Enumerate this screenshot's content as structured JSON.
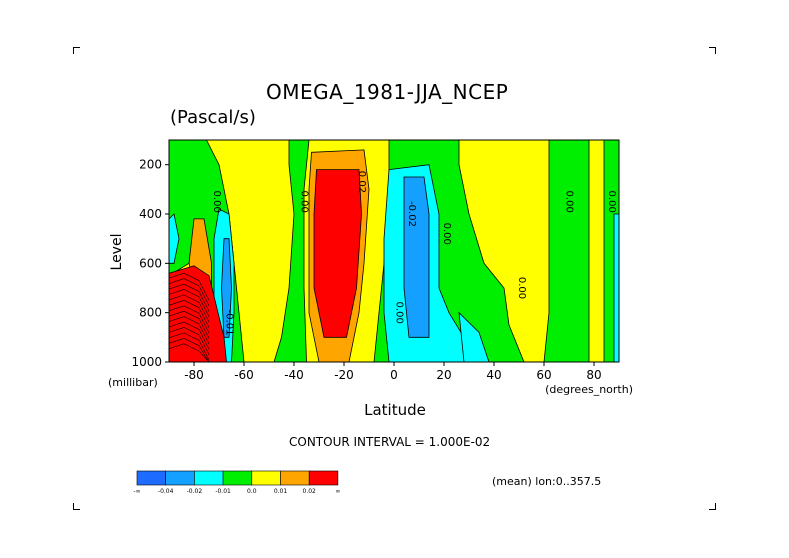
{
  "chart_data": {
    "type": "heatmap",
    "title": "OMEGA_1981-JJA_NCEP",
    "subtitle": "(Pascal/s)",
    "xlabel": "Latitude",
    "ylabel": "Level",
    "x_unit": "(degrees_north)",
    "y_unit": "(millibar)",
    "xlim": [
      -90,
      90
    ],
    "ylim": [
      1000,
      100
    ],
    "x_ticks": [
      "-80",
      "-60",
      "-40",
      "-20",
      "0",
      "20",
      "40",
      "60",
      "80"
    ],
    "x_tick_values": [
      -80,
      -60,
      -40,
      -20,
      0,
      20,
      40,
      60,
      80
    ],
    "y_ticks": [
      "200",
      "400",
      "600",
      "800",
      "1000"
    ],
    "y_tick_values": [
      200,
      400,
      600,
      800,
      1000
    ],
    "contour_interval_text": "CONTOUR INTERVAL = 1.000E-02",
    "mean_text": "(mean) lon:0..357.5",
    "contour_labels": [
      {
        "text": "0.00",
        "x": -72,
        "y": 350
      },
      {
        "text": "0.00",
        "x": -37,
        "y": 350
      },
      {
        "text": "0.02",
        "x": -14,
        "y": 270
      },
      {
        "text": "-0.02",
        "x": 6,
        "y": 400
      },
      {
        "text": "0.00",
        "x": 20,
        "y": 480
      },
      {
        "text": "0.00",
        "x": 1,
        "y": 800
      },
      {
        "text": "-0.01",
        "x": -67,
        "y": 840
      },
      {
        "text": "0.00",
        "x": 50,
        "y": 700
      },
      {
        "text": "0.00",
        "x": 69,
        "y": 350
      },
      {
        "text": "0.00",
        "x": 86,
        "y": 350
      }
    ],
    "colorbar": {
      "colors": [
        "#1e6cff",
        "#14a0ff",
        "#00ffff",
        "#00ee00",
        "#ffff00",
        "#ffa500",
        "#ff0000"
      ],
      "labels": [
        "-∞",
        "-0.04",
        "-0.02",
        "-0.01",
        "0.0",
        "0.01",
        "0.02",
        "∞"
      ]
    },
    "regions": [
      {
        "color": "#00ee00",
        "points": [
          [
            -90,
            100
          ],
          [
            90,
            100
          ],
          [
            90,
            1000
          ],
          [
            -90,
            1000
          ]
        ]
      },
      {
        "color": "#ffff00",
        "points": [
          [
            -75,
            100
          ],
          [
            -42,
            100
          ],
          [
            -42,
            200
          ],
          [
            -40,
            400
          ],
          [
            -42,
            700
          ],
          [
            -45,
            900
          ],
          [
            -48,
            1000
          ],
          [
            -60,
            1000
          ],
          [
            -62,
            800
          ],
          [
            -64,
            600
          ],
          [
            -66,
            400
          ],
          [
            -70,
            200
          ]
        ]
      },
      {
        "color": "#ffff00",
        "points": [
          [
            -34,
            100
          ],
          [
            -2,
            100
          ],
          [
            -2,
            300
          ],
          [
            -4,
            600
          ],
          [
            -6,
            800
          ],
          [
            -8,
            1000
          ],
          [
            -35,
            1000
          ],
          [
            -36,
            700
          ],
          [
            -36,
            300
          ]
        ]
      },
      {
        "color": "#ffff00",
        "points": [
          [
            26,
            100
          ],
          [
            62,
            100
          ],
          [
            62,
            400
          ],
          [
            62,
            800
          ],
          [
            60,
            1000
          ],
          [
            52,
            1000
          ],
          [
            46,
            850
          ],
          [
            44,
            700
          ],
          [
            36,
            600
          ],
          [
            30,
            400
          ],
          [
            26,
            200
          ]
        ]
      },
      {
        "color": "#ffff00",
        "points": [
          [
            78,
            100
          ],
          [
            84,
            100
          ],
          [
            84,
            1000
          ],
          [
            78,
            1000
          ]
        ]
      },
      {
        "color": "#ffff00",
        "points": [
          [
            -90,
            650
          ],
          [
            -82,
            600
          ],
          [
            -75,
            700
          ],
          [
            -72,
            1000
          ],
          [
            -90,
            1000
          ]
        ]
      },
      {
        "color": "#00ffff",
        "points": [
          [
            -70,
            380
          ],
          [
            -66,
            400
          ],
          [
            -64,
            600
          ],
          [
            -64,
            800
          ],
          [
            -65,
            1000
          ],
          [
            -70,
            1000
          ],
          [
            -72,
            800
          ],
          [
            -72,
            500
          ]
        ]
      },
      {
        "color": "#00ffff",
        "points": [
          [
            -2,
            220
          ],
          [
            14,
            200
          ],
          [
            18,
            400
          ],
          [
            18,
            700
          ],
          [
            22,
            800
          ],
          [
            28,
            900
          ],
          [
            30,
            1000
          ],
          [
            -2,
            1000
          ],
          [
            -4,
            800
          ],
          [
            -4,
            500
          ]
        ]
      },
      {
        "color": "#00ffff",
        "points": [
          [
            26,
            800
          ],
          [
            34,
            880
          ],
          [
            38,
            1000
          ],
          [
            28,
            1000
          ]
        ]
      },
      {
        "color": "#00ffff",
        "points": [
          [
            -88,
            400
          ],
          [
            -86,
            500
          ],
          [
            -88,
            600
          ],
          [
            -90,
            600
          ],
          [
            -90,
            420
          ]
        ]
      },
      {
        "color": "#00ffff",
        "points": [
          [
            88,
            400
          ],
          [
            90,
            400
          ],
          [
            90,
            1000
          ],
          [
            88,
            1000
          ]
        ]
      },
      {
        "color": "#14a0ff",
        "points": [
          [
            4,
            250
          ],
          [
            12,
            250
          ],
          [
            14,
            400
          ],
          [
            14,
            700
          ],
          [
            14,
            900
          ],
          [
            6,
            900
          ],
          [
            4,
            700
          ],
          [
            4,
            400
          ]
        ]
      },
      {
        "color": "#14a0ff",
        "points": [
          [
            -68,
            500
          ],
          [
            -66,
            500
          ],
          [
            -65,
            700
          ],
          [
            -66,
            900
          ],
          [
            -68,
            900
          ],
          [
            -69,
            700
          ]
        ]
      },
      {
        "color": "#ffa500",
        "points": [
          [
            -80,
            420
          ],
          [
            -76,
            420
          ],
          [
            -73,
            600
          ],
          [
            -73,
            700
          ],
          [
            -80,
            700
          ],
          [
            -82,
            600
          ]
        ]
      },
      {
        "color": "#ffa500",
        "points": [
          [
            -33,
            150
          ],
          [
            -12,
            140
          ],
          [
            -10,
            300
          ],
          [
            -12,
            600
          ],
          [
            -14,
            800
          ],
          [
            -18,
            1000
          ],
          [
            -30,
            1000
          ],
          [
            -34,
            800
          ],
          [
            -34,
            500
          ],
          [
            -34,
            300
          ]
        ]
      },
      {
        "color": "#ff0000",
        "points": [
          [
            -31,
            220
          ],
          [
            -14,
            220
          ],
          [
            -13,
            400
          ],
          [
            -15,
            700
          ],
          [
            -19,
            900
          ],
          [
            -28,
            900
          ],
          [
            -32,
            700
          ],
          [
            -32,
            400
          ]
        ]
      },
      {
        "color": "#ff0000",
        "points": [
          [
            -90,
            640
          ],
          [
            -80,
            610
          ],
          [
            -74,
            650
          ],
          [
            -68,
            900
          ],
          [
            -67,
            1000
          ],
          [
            -90,
            1000
          ]
        ]
      }
    ]
  }
}
